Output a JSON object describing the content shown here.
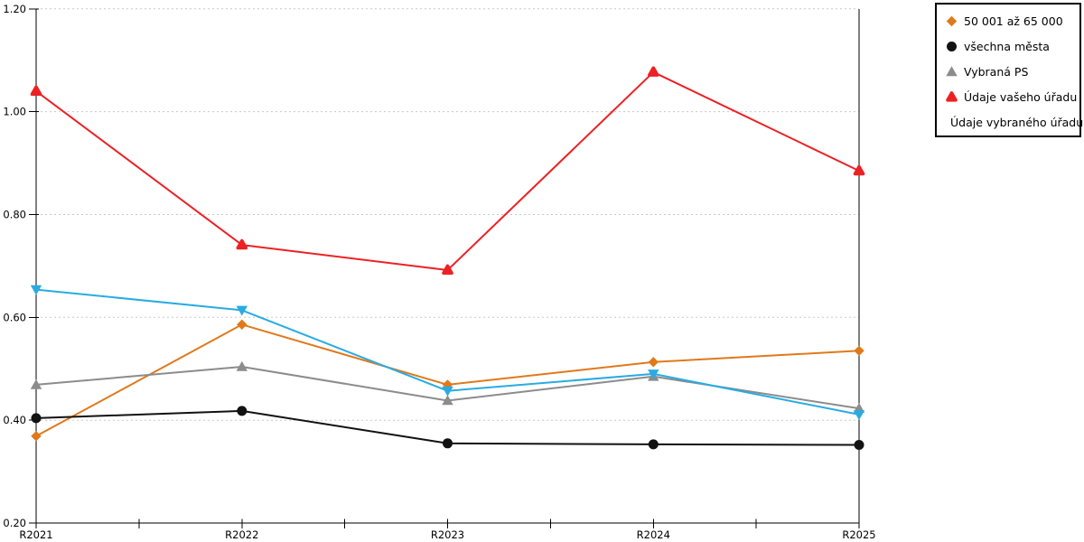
{
  "chart_data": {
    "type": "line",
    "title": "",
    "xlabel": "",
    "ylabel": "",
    "categories": [
      "R2021",
      "R2022",
      "R2023",
      "R2024",
      "R2025"
    ],
    "series": [
      {
        "name": "50 001 až 65 000",
        "color": "#E0791B",
        "marker": "diamond",
        "values": [
          0.369,
          0.586,
          0.469,
          0.513,
          0.535
        ]
      },
      {
        "name": "všechna města",
        "color": "#121212",
        "marker": "circle",
        "values": [
          0.404,
          0.418,
          0.355,
          0.353,
          0.352
        ]
      },
      {
        "name": "Vybraná PS",
        "color": "#8C8C8C",
        "marker": "triangle-up",
        "values": [
          0.469,
          0.504,
          0.438,
          0.485,
          0.423
        ]
      },
      {
        "name": "Údaje vašeho úřadu",
        "color": "#ED2124",
        "marker": "triangle-up-rounded",
        "values": [
          1.04,
          0.741,
          0.692,
          1.077,
          0.885
        ]
      },
      {
        "name": "Údaje vybraného úřadu",
        "color": "#29ABE2",
        "marker": "triangle-down",
        "values": [
          0.654,
          0.614,
          0.457,
          0.49,
          0.411
        ]
      }
    ],
    "ylim": [
      0.2,
      1.2
    ],
    "y_ticks": [
      0.2,
      0.4,
      0.6,
      0.8,
      1.0,
      1.2
    ],
    "y_tick_labels": [
      "0.20",
      "0.40",
      "0.60",
      "0.80",
      "1.00",
      "1.20"
    ],
    "grid": "horizontal-dotted",
    "grid_color": "#C8C8C8",
    "legend_position": "top-right",
    "axis_color": "#000000"
  }
}
